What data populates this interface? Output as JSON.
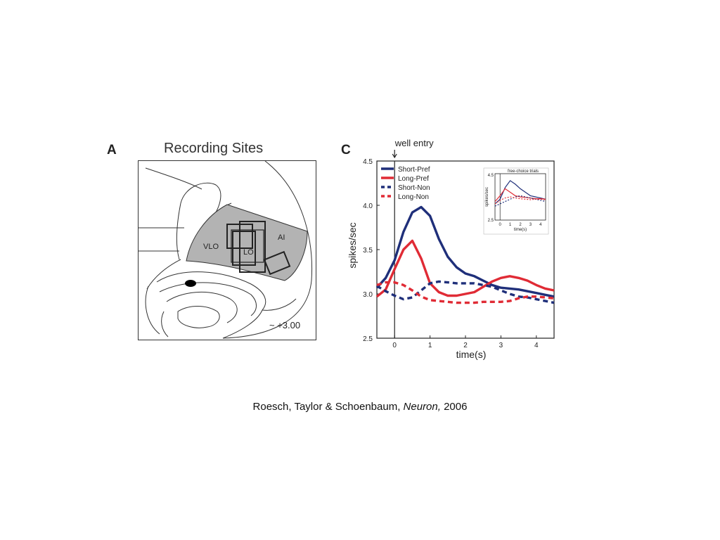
{
  "panel_a": {
    "letter": "A",
    "title": "Recording Sites",
    "regions": {
      "vlo": "VLO",
      "lo": "LO",
      "ai": "AI"
    },
    "coordinate": "~ +3.00",
    "colors": {
      "shaded_region": "#b3b3b3",
      "outline": "#333333"
    }
  },
  "panel_c": {
    "letter": "C",
    "event_label": "well entry"
  },
  "chart_data": {
    "type": "line",
    "xlabel": "time(s)",
    "ylabel": "spikes/sec",
    "xlim": [
      -0.5,
      4.5
    ],
    "ylim": [
      2.5,
      4.5
    ],
    "xticks": [
      0,
      1,
      2,
      3,
      4
    ],
    "yticks": [
      2.5,
      3.0,
      3.5,
      4.0,
      4.5
    ],
    "legend_position": "top-left",
    "x": [
      -0.5,
      -0.25,
      0,
      0.25,
      0.5,
      0.75,
      1,
      1.25,
      1.5,
      1.75,
      2,
      2.25,
      2.5,
      2.75,
      3,
      3.25,
      3.5,
      3.75,
      4,
      4.25,
      4.5
    ],
    "series": [
      {
        "name": "Short-Pref",
        "color": "#1f2f7a",
        "dashed": false,
        "values": [
          3.07,
          3.18,
          3.38,
          3.7,
          3.92,
          3.98,
          3.88,
          3.62,
          3.42,
          3.3,
          3.23,
          3.2,
          3.15,
          3.1,
          3.07,
          3.06,
          3.05,
          3.03,
          3.01,
          2.99,
          2.97
        ]
      },
      {
        "name": "Long-Pref",
        "color": "#e02b35",
        "dashed": false,
        "values": [
          2.97,
          3.05,
          3.28,
          3.5,
          3.6,
          3.4,
          3.12,
          3.02,
          2.98,
          2.98,
          3.0,
          3.02,
          3.08,
          3.14,
          3.18,
          3.2,
          3.18,
          3.15,
          3.1,
          3.06,
          3.04
        ]
      },
      {
        "name": "Short-Non",
        "color": "#1f2f7a",
        "dashed": true,
        "values": [
          3.09,
          3.03,
          2.98,
          2.94,
          2.96,
          3.04,
          3.12,
          3.14,
          3.13,
          3.12,
          3.12,
          3.12,
          3.1,
          3.08,
          3.04,
          3.0,
          2.97,
          2.96,
          2.94,
          2.92,
          2.9
        ]
      },
      {
        "name": "Long-Non",
        "color": "#e02b35",
        "dashed": true,
        "values": [
          3.1,
          3.13,
          3.13,
          3.1,
          3.04,
          2.97,
          2.93,
          2.92,
          2.91,
          2.9,
          2.9,
          2.9,
          2.91,
          2.91,
          2.91,
          2.92,
          2.95,
          2.97,
          2.97,
          2.96,
          2.95
        ]
      }
    ],
    "inset": {
      "title": "free-choice trials",
      "xlabel": "time(s)",
      "ylabel": "spikes/sec",
      "xticks": [
        0,
        1,
        2,
        3,
        4
      ],
      "ytick_labels": [
        "2.5",
        "4.5"
      ],
      "ylim": [
        2.5,
        4.5
      ],
      "xlim": [
        -0.5,
        4.5
      ],
      "x": [
        -0.5,
        0,
        0.5,
        1,
        1.5,
        2,
        2.5,
        3,
        3.5,
        4,
        4.5
      ],
      "series": [
        {
          "color": "#1f2f7a",
          "dashed": false,
          "values": [
            3.2,
            3.4,
            3.9,
            4.2,
            4.05,
            3.85,
            3.7,
            3.55,
            3.5,
            3.45,
            3.4
          ]
        },
        {
          "color": "#e02b35",
          "dashed": false,
          "values": [
            3.3,
            3.55,
            3.85,
            3.7,
            3.55,
            3.5,
            3.48,
            3.45,
            3.42,
            3.42,
            3.4
          ]
        },
        {
          "color": "#1f2f7a",
          "dashed": true,
          "values": [
            3.1,
            3.2,
            3.3,
            3.4,
            3.5,
            3.55,
            3.5,
            3.45,
            3.4,
            3.35,
            3.3
          ]
        },
        {
          "color": "#e02b35",
          "dashed": true,
          "values": [
            3.2,
            3.35,
            3.45,
            3.5,
            3.45,
            3.42,
            3.4,
            3.38,
            3.4,
            3.4,
            3.38
          ]
        }
      ]
    }
  },
  "citation": {
    "authors": "Roesch, Taylor & Schoenbaum, ",
    "journal": "Neuron,",
    "year": " 2006"
  }
}
